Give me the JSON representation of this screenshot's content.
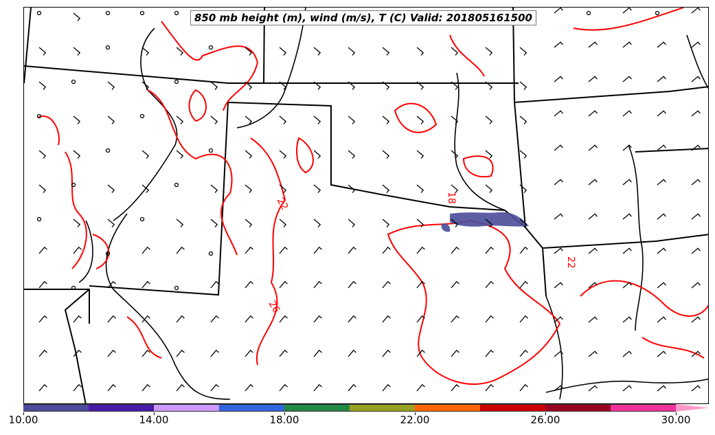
{
  "title": "850 mb height (m), wind (m/s), T (C) Valid: 201805161500",
  "contour_labels": [
    "22",
    "26",
    "22",
    "18"
  ],
  "colors": {
    "temperature_contour": "#ff0000",
    "boundaries": "#000000",
    "shaded_low": "#4b4d9a"
  },
  "colorbar": {
    "ticks": [
      "10.00",
      "14.00",
      "18.00",
      "22.00",
      "26.00",
      "30.00"
    ],
    "segments": [
      "#4b4d9a",
      "#4a1aa8",
      "#cc99ff",
      "#3366dd",
      "#228844",
      "#99a022",
      "#ff6600",
      "#cc0000",
      "#990022",
      "#ee3399",
      "#ff99cc"
    ]
  }
}
